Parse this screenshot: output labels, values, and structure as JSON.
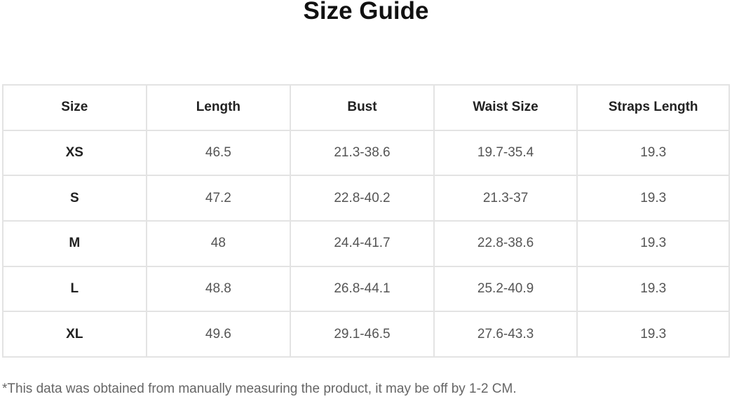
{
  "title": "Size Guide",
  "headers": [
    "Size",
    "Length",
    "Bust",
    "Waist Size",
    "Straps Length"
  ],
  "rows": [
    [
      "XS",
      "46.5",
      "21.3-38.6",
      "19.7-35.4",
      "19.3"
    ],
    [
      "S",
      "47.2",
      "22.8-40.2",
      "21.3-37",
      "19.3"
    ],
    [
      "M",
      "48",
      "24.4-41.7",
      "22.8-38.6",
      "19.3"
    ],
    [
      "L",
      "48.8",
      "26.8-44.1",
      "25.2-40.9",
      "19.3"
    ],
    [
      "XL",
      "49.6",
      "29.1-46.5",
      "27.6-43.3",
      "19.3"
    ]
  ],
  "note": "*This data was obtained from manually measuring the product, it may be off by 1-2 CM."
}
